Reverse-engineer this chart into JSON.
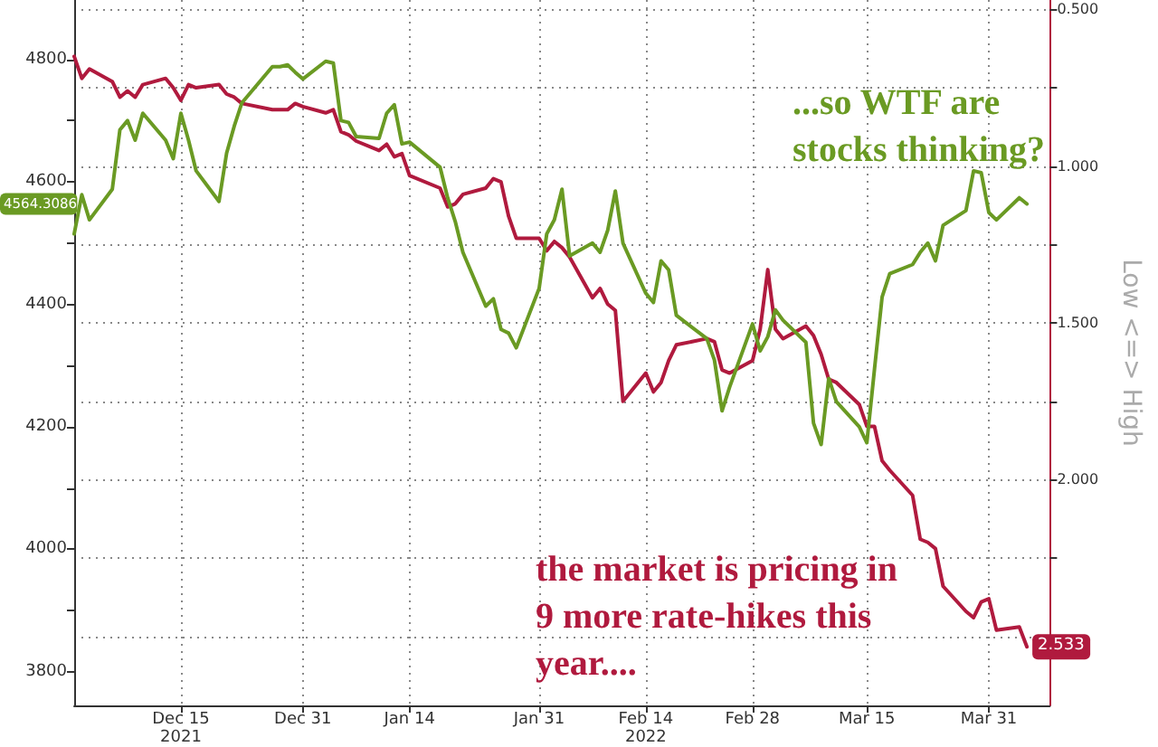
{
  "chart_data": {
    "type": "line",
    "y2label": "Low <=> High",
    "annotations": [
      "...so WTF are stocks thinking?",
      "the market is pricing in 9 more rate-hikes this year....",
      "4564.3086"
    ],
    "x": [
      "2021-12-01",
      "2021-12-02",
      "2021-12-03",
      "2021-12-06",
      "2021-12-07",
      "2021-12-08",
      "2021-12-09",
      "2021-12-10",
      "2021-12-13",
      "2021-12-14",
      "2021-12-15",
      "2021-12-16",
      "2021-12-17",
      "2021-12-20",
      "2021-12-21",
      "2021-12-22",
      "2021-12-23",
      "2021-12-27",
      "2021-12-28",
      "2021-12-29",
      "2021-12-30",
      "2021-12-31",
      "2022-01-03",
      "2022-01-04",
      "2022-01-05",
      "2022-01-06",
      "2022-01-07",
      "2022-01-10",
      "2022-01-11",
      "2022-01-12",
      "2022-01-13",
      "2022-01-14",
      "2022-01-18",
      "2022-01-19",
      "2022-01-20",
      "2022-01-21",
      "2022-01-24",
      "2022-01-25",
      "2022-01-26",
      "2022-01-27",
      "2022-01-28",
      "2022-01-31",
      "2022-02-01",
      "2022-02-02",
      "2022-02-03",
      "2022-02-04",
      "2022-02-07",
      "2022-02-08",
      "2022-02-09",
      "2022-02-10",
      "2022-02-11",
      "2022-02-14",
      "2022-02-15",
      "2022-02-16",
      "2022-02-17",
      "2022-02-18",
      "2022-02-22",
      "2022-02-23",
      "2022-02-24",
      "2022-02-25",
      "2022-02-28",
      "2022-03-01",
      "2022-03-02",
      "2022-03-03",
      "2022-03-04",
      "2022-03-07",
      "2022-03-08",
      "2022-03-09",
      "2022-03-10",
      "2022-03-11",
      "2022-03-14",
      "2022-03-15",
      "2022-03-16",
      "2022-03-17",
      "2022-03-18",
      "2022-03-21",
      "2022-03-22",
      "2022-03-23",
      "2022-03-24",
      "2022-03-25",
      "2022-03-28",
      "2022-03-29",
      "2022-03-30",
      "2022-03-31",
      "2022-04-01",
      "2022-04-04",
      "2022-04-05"
    ],
    "xlim": [
      "2021-12-01",
      "2022-04-08"
    ],
    "xticks": [
      {
        "value": "2021-12-15",
        "label": "Dec 15\n2021"
      },
      {
        "value": "2021-12-31",
        "label": "Dec 31"
      },
      {
        "value": "2022-01-14",
        "label": "Jan 14"
      },
      {
        "value": "2022-01-31",
        "label": "Jan 31"
      },
      {
        "value": "2022-02-14",
        "label": "Feb 14\n2022"
      },
      {
        "value": "2022-02-28",
        "label": "Feb 28"
      },
      {
        "value": "2022-03-15",
        "label": "Mar 15"
      },
      {
        "value": "2022-03-31",
        "label": "Mar 31"
      }
    ],
    "ylim": [
      3745,
      4897
    ],
    "yticks": [
      3800,
      {
        "value": 3900,
        "label": null
      },
      4000,
      {
        "value": 4100,
        "label": null
      },
      4200,
      {
        "value": 4300,
        "label": null
      },
      4400,
      {
        "value": 4500,
        "label": null
      },
      4600,
      {
        "value": 4700,
        "label": null
      },
      4800
    ],
    "y2lim": [
      2.72,
      0.47
    ],
    "y2ticks": [
      {
        "value": 0.5,
        "label": "0.500"
      },
      {
        "value": 0.75,
        "label": null
      },
      {
        "value": 1,
        "label": "1.000"
      },
      {
        "value": 1.25,
        "label": null
      },
      {
        "value": 1.5,
        "label": "1.500"
      },
      {
        "value": 1.75,
        "label": null
      },
      {
        "value": 2,
        "label": "2.000"
      },
      {
        "value": 2.25,
        "label": null
      },
      {
        "value": 2.5,
        "label": null
      }
    ],
    "grid": true,
    "legend": false,
    "marker": "none",
    "line_style": "solid",
    "series": [
      {
        "color": "#6a9a23",
        "values": [
          4515,
          4579,
          4538,
          4588,
          4685,
          4700,
          4668,
          4712,
          4668,
          4638,
          4712,
          4668,
          4618,
          4568,
          4647,
          4691,
          4729,
          4788,
          4788,
          4791,
          4779,
          4768,
          4797,
          4794,
          4700,
          4697,
          4674,
          4671,
          4712,
          4726,
          4662,
          4665,
          4624,
          4574,
          4535,
          4485,
          4397,
          4409,
          4359,
          4353,
          4329,
          4426,
          4515,
          4538,
          4588,
          4479,
          4500,
          4485,
          4521,
          4585,
          4500,
          4418,
          4403,
          4471,
          4456,
          4382,
          4344,
          4309,
          4226,
          4265,
          4368,
          4324,
          4347,
          4391,
          4374,
          4338,
          4206,
          4171,
          4279,
          4241,
          4200,
          4174,
          4294,
          4412,
          4450,
          4465,
          4485,
          4500,
          4471,
          4529,
          4553,
          4618,
          4615,
          4550,
          4538,
          4574,
          4564
        ]
      },
      {
        "color": "#b01a3e",
        "axis": "y2",
        "values": [
          0.65,
          0.72,
          0.69,
          0.73,
          0.78,
          0.76,
          0.78,
          0.74,
          0.72,
          0.75,
          0.79,
          0.74,
          0.75,
          0.74,
          0.77,
          0.78,
          0.8,
          0.82,
          0.82,
          0.82,
          0.8,
          0.81,
          0.83,
          0.82,
          0.89,
          0.9,
          0.92,
          0.95,
          0.93,
          0.97,
          0.96,
          1.03,
          1.07,
          1.13,
          1.12,
          1.09,
          1.07,
          1.04,
          1.05,
          1.16,
          1.23,
          1.23,
          1.27,
          1.24,
          1.26,
          1.29,
          1.42,
          1.39,
          1.44,
          1.46,
          1.75,
          1.66,
          1.72,
          1.69,
          1.62,
          1.57,
          1.55,
          1.56,
          1.65,
          1.66,
          1.62,
          1.52,
          1.33,
          1.52,
          1.55,
          1.51,
          1.54,
          1.6,
          1.68,
          1.69,
          1.76,
          1.83,
          1.83,
          1.94,
          1.97,
          2.05,
          2.19,
          2.2,
          2.22,
          2.34,
          2.42,
          2.44,
          2.39,
          2.38,
          2.48,
          2.47,
          2.533
        ],
        "value_labels": [
          null,
          null,
          null,
          null,
          null,
          null,
          null,
          null,
          null,
          null,
          null,
          null,
          null,
          null,
          null,
          null,
          null,
          null,
          null,
          null,
          null,
          null,
          null,
          null,
          null,
          null,
          null,
          null,
          null,
          null,
          null,
          null,
          null,
          null,
          null,
          null,
          null,
          null,
          null,
          null,
          null,
          null,
          null,
          null,
          null,
          null,
          null,
          null,
          null,
          null,
          null,
          null,
          null,
          null,
          null,
          null,
          null,
          null,
          null,
          null,
          null,
          null,
          null,
          null,
          null,
          null,
          null,
          null,
          null,
          null,
          null,
          null,
          null,
          null,
          null,
          null,
          null,
          null,
          null,
          null,
          null,
          null,
          null,
          null,
          null,
          null,
          "2.533"
        ]
      }
    ]
  }
}
